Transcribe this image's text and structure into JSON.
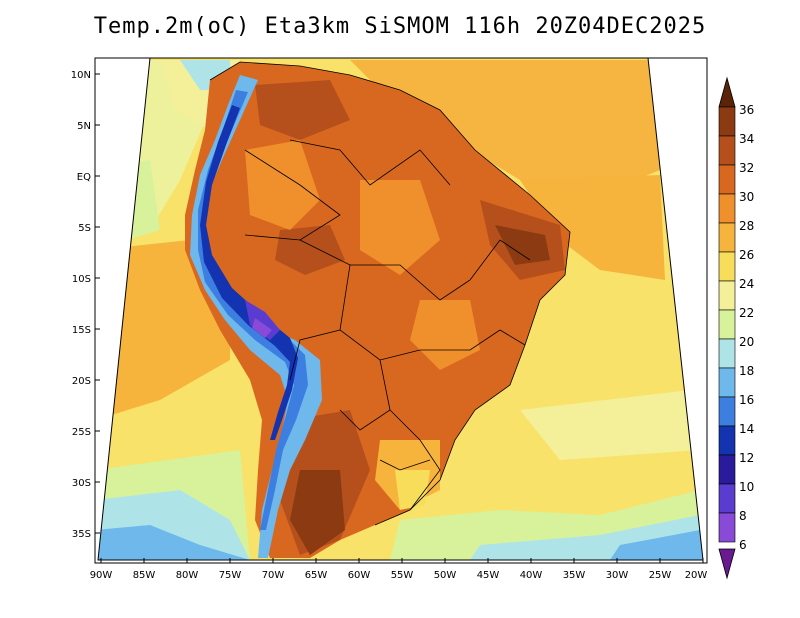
{
  "title": "Temp.2m(oC) Eta3km SiSMOM 116h 20Z04DEC2025",
  "lat_labels": [
    "10N",
    "5N",
    "EQ",
    "5S",
    "10S",
    "15S",
    "20S",
    "25S",
    "30S",
    "35S"
  ],
  "lon_labels": [
    "90W",
    "85W",
    "80W",
    "75W",
    "70W",
    "65W",
    "60W",
    "55W",
    "50W",
    "45W",
    "40W",
    "35W",
    "30W",
    "25W",
    "20W"
  ],
  "colorbar": {
    "labels": [
      "36",
      "34",
      "32",
      "30",
      "28",
      "26",
      "24",
      "22",
      "20",
      "18",
      "16",
      "14",
      "12",
      "10",
      "8",
      "6"
    ],
    "colors": [
      "#5a2408",
      "#8b3a12",
      "#b5501c",
      "#d8681f",
      "#f0902c",
      "#f6b43c",
      "#f8dd5a",
      "#f4f09a",
      "#d7f29a",
      "#aee4e8",
      "#6fb8ec",
      "#3d7fe0",
      "#1433b0",
      "#2a1a9c",
      "#5a3cd0",
      "#8a4ad8",
      "#6a1a90"
    ]
  }
}
